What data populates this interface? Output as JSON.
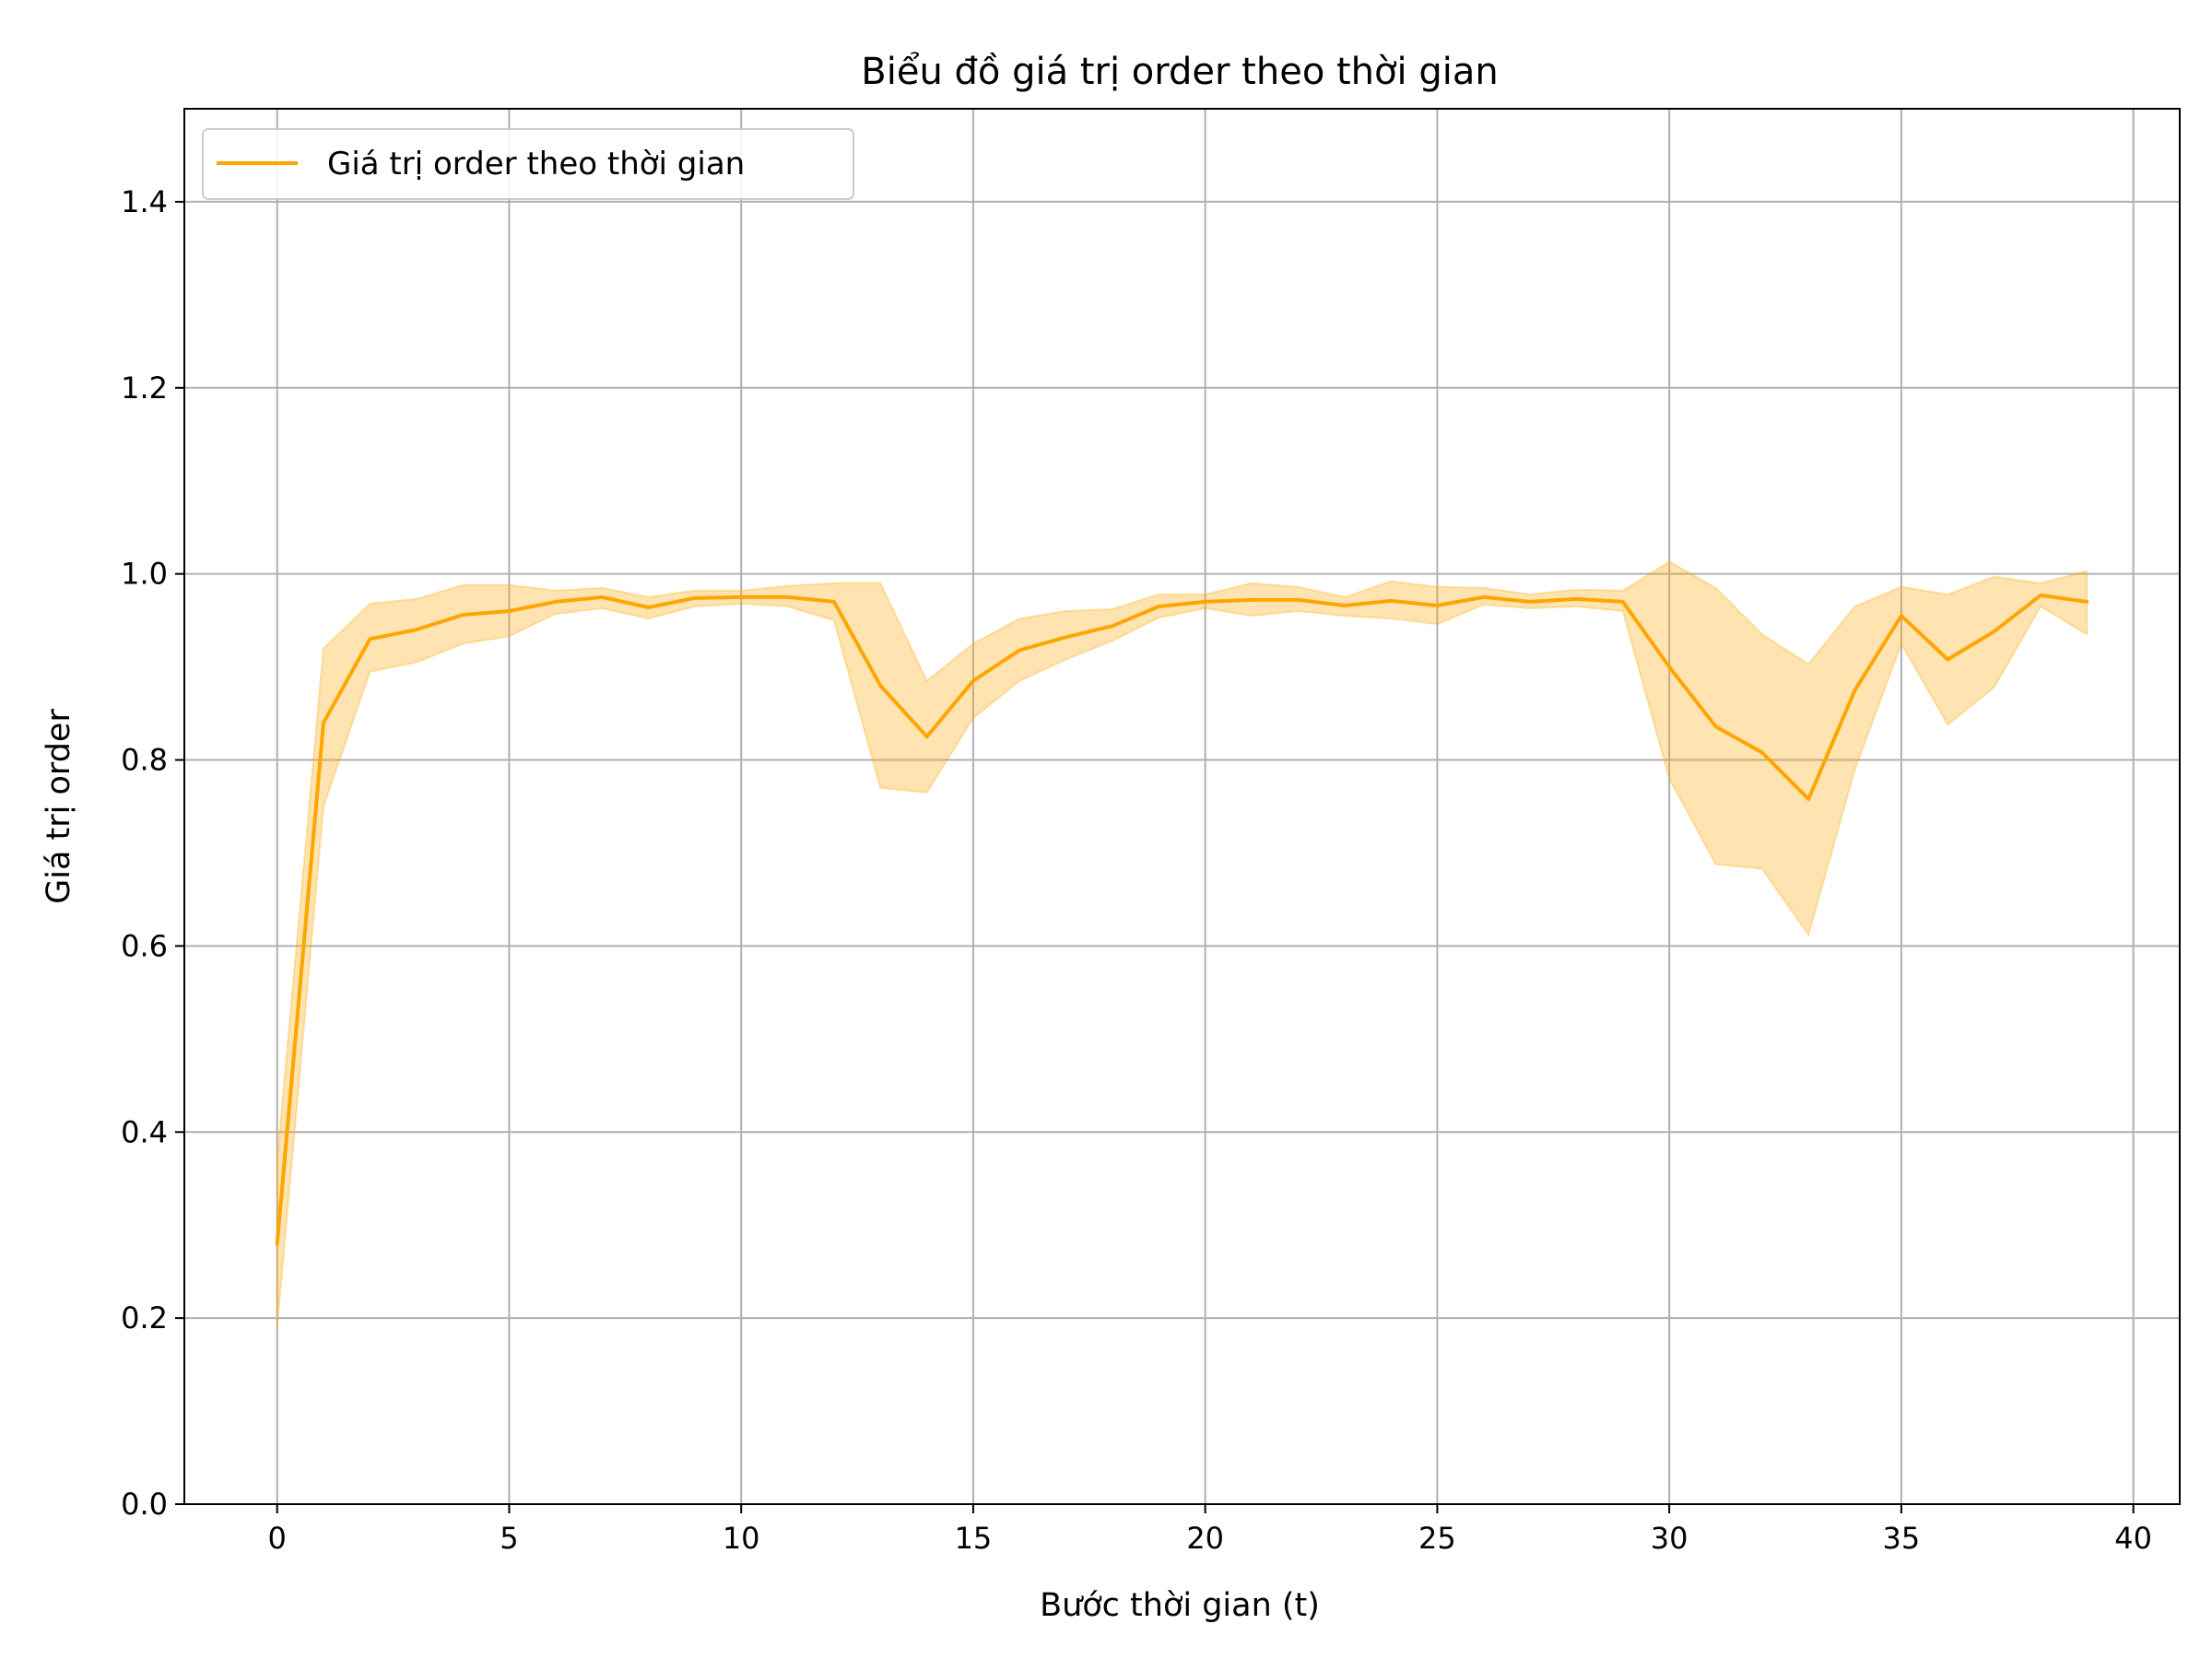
{
  "chart_data": {
    "type": "line",
    "title": "Biểu đồ giá trị order theo thời gian",
    "xlabel": "Bước thời gian (t)",
    "ylabel": "Giá trị order",
    "xlim": [
      -2,
      41
    ],
    "ylim": [
      0.0,
      1.5
    ],
    "xticks": [
      0,
      5,
      10,
      15,
      20,
      25,
      30,
      35,
      40
    ],
    "xtick_labels": [
      "0",
      "5",
      "10",
      "15",
      "20",
      "25",
      "30",
      "35",
      "40"
    ],
    "yticks": [
      0.0,
      0.2,
      0.4,
      0.6,
      0.8,
      1.0,
      1.2,
      1.4
    ],
    "ytick_labels": [
      "0.0",
      "0.2",
      "0.4",
      "0.6",
      "0.8",
      "1.0",
      "1.2",
      "1.4"
    ],
    "grid": true,
    "legend_position": "top-left",
    "series": [
      {
        "name": "Giá trị order theo thời gian",
        "color": "#FFA500",
        "band_color": "#FFA500",
        "x": [
          0,
          1,
          2,
          3,
          4,
          5,
          6,
          7,
          8,
          9,
          10,
          11,
          12,
          13,
          14,
          15,
          16,
          17,
          18,
          19,
          20,
          21,
          22,
          23,
          24,
          25,
          26,
          27,
          28,
          29,
          30,
          31,
          32,
          33,
          34,
          35,
          36,
          37,
          38,
          39
        ],
        "values": [
          0.28,
          0.84,
          0.93,
          0.94,
          0.956,
          0.96,
          0.97,
          0.975,
          0.964,
          0.974,
          0.975,
          0.975,
          0.97,
          0.88,
          0.825,
          0.885,
          0.918,
          0.932,
          0.944,
          0.965,
          0.97,
          0.972,
          0.972,
          0.966,
          0.971,
          0.966,
          0.975,
          0.97,
          0.973,
          0.97,
          0.9,
          0.836,
          0.808,
          0.758,
          0.875,
          0.955,
          0.908,
          0.938,
          0.977,
          0.97
        ],
        "band_lower": [
          0.19,
          0.75,
          0.895,
          0.905,
          0.925,
          0.933,
          0.957,
          0.963,
          0.952,
          0.965,
          0.968,
          0.965,
          0.95,
          0.77,
          0.765,
          0.845,
          0.885,
          0.908,
          0.928,
          0.953,
          0.963,
          0.955,
          0.96,
          0.955,
          0.952,
          0.946,
          0.967,
          0.963,
          0.965,
          0.96,
          0.78,
          0.688,
          0.683,
          0.612,
          0.79,
          0.925,
          0.838,
          0.878,
          0.965,
          0.935
        ],
        "band_upper": [
          0.37,
          0.92,
          0.968,
          0.973,
          0.988,
          0.988,
          0.982,
          0.985,
          0.975,
          0.982,
          0.982,
          0.987,
          0.99,
          0.99,
          0.885,
          0.925,
          0.952,
          0.96,
          0.962,
          0.978,
          0.978,
          0.99,
          0.986,
          0.975,
          0.992,
          0.986,
          0.985,
          0.978,
          0.983,
          0.982,
          1.013,
          0.985,
          0.935,
          0.903,
          0.965,
          0.986,
          0.978,
          0.997,
          0.99,
          1.003
        ]
      }
    ]
  }
}
